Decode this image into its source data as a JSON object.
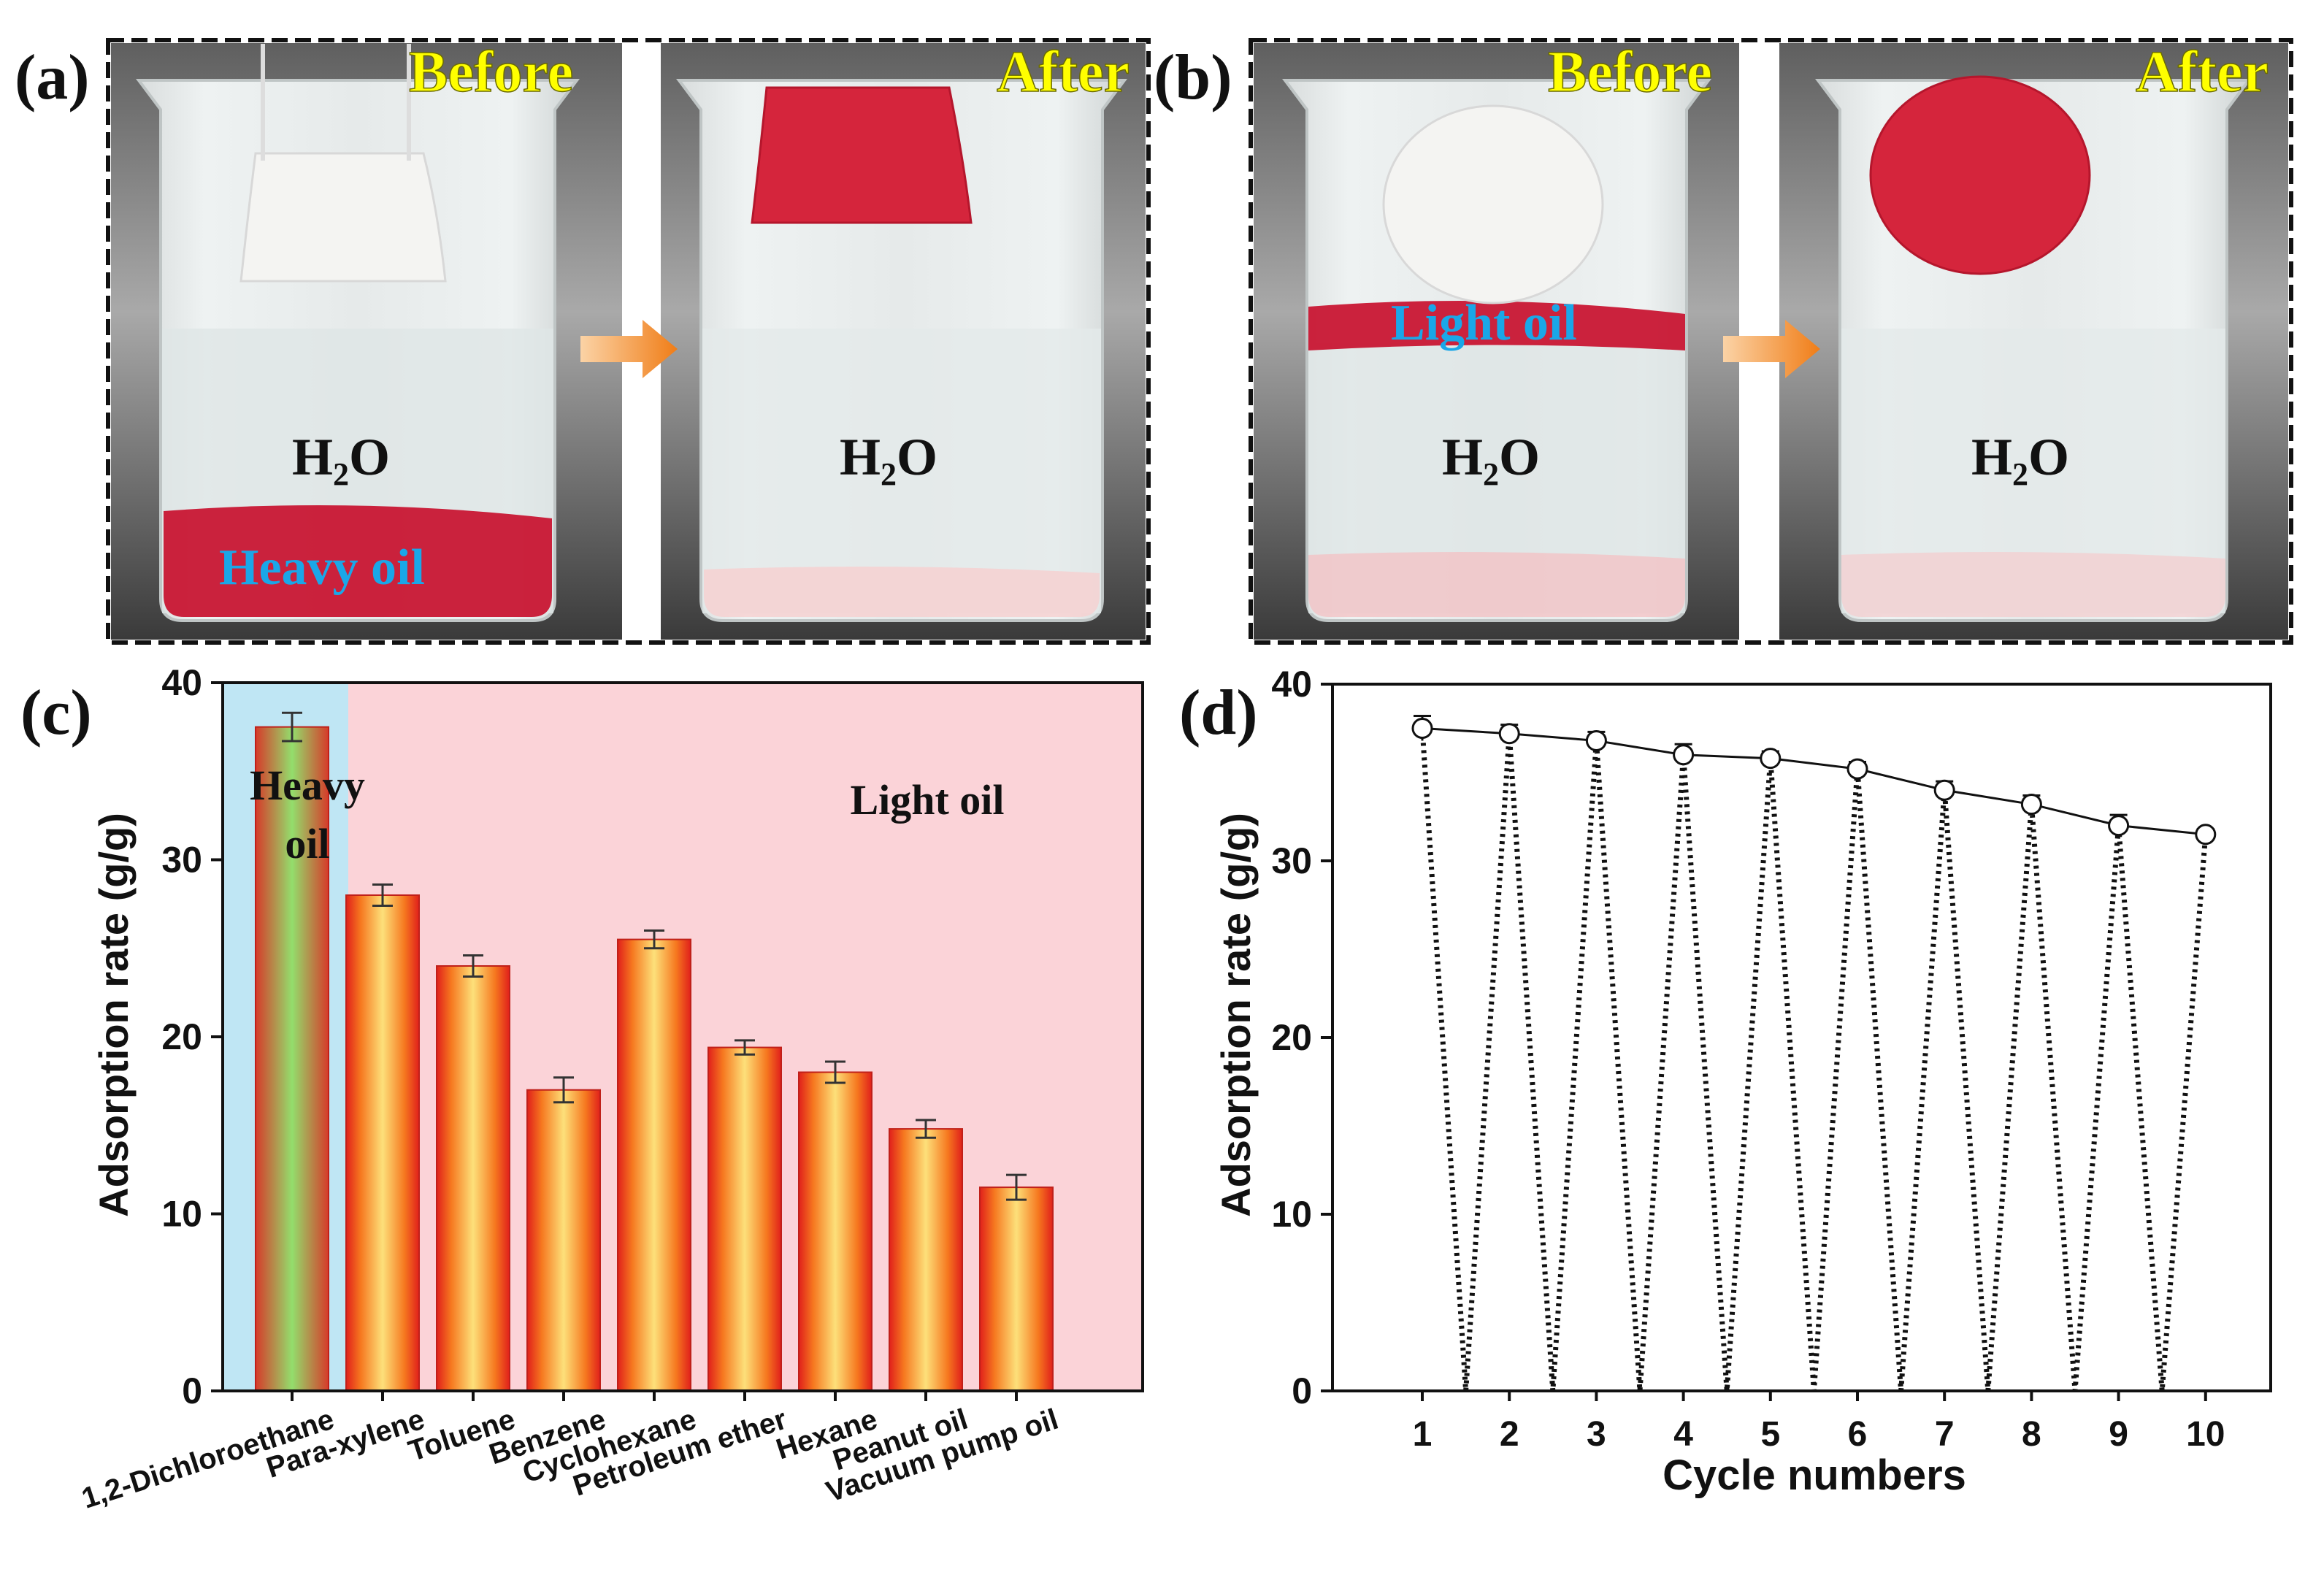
{
  "panels": {
    "a": {
      "label": "(a)",
      "before_label": "Before",
      "after_label": "After",
      "water_label_before": "H",
      "water_label_after": "H",
      "water_sub": "2",
      "water_o": "O",
      "oil_label": "Heavy oil"
    },
    "b": {
      "label": "(b)",
      "before_label": "Before",
      "after_label": "After",
      "water_label_before": "H",
      "water_label_after": "H",
      "water_sub": "2",
      "water_o": "O",
      "oil_label": "Light oil"
    },
    "c": {
      "label": "(c)"
    },
    "d": {
      "label": "(d)"
    }
  },
  "colors": {
    "label_yellow": "#ffff00",
    "label_blue": "#1aa7e8",
    "arrow_orange": "#f08a24",
    "oil_red": "#c8102e",
    "heavy_bg": "#bfe6f4",
    "light_bg": "#fbd3d8"
  },
  "chart_data": [
    {
      "type": "bar",
      "panel": "c",
      "ylabel": "Adsorption rate (g/g)",
      "ylim": [
        0,
        40
      ],
      "yticks": [
        0,
        10,
        20,
        30,
        40
      ],
      "categories": [
        "1,2-Dichloroethane",
        "Para-xylene",
        "Toluene",
        "Benzene",
        "Cyclohexane",
        "Petroleum ether",
        "Hexane",
        "Peanut oil",
        "Vacuum pump oil"
      ],
      "values": [
        37.5,
        28.0,
        24.0,
        17.0,
        25.5,
        19.4,
        18.0,
        14.8,
        11.5
      ],
      "errors": [
        0.8,
        0.6,
        0.6,
        0.7,
        0.5,
        0.4,
        0.6,
        0.5,
        0.7
      ],
      "annotations": [
        {
          "text_lines": [
            "Heavy",
            "oil"
          ],
          "region": "heavy"
        },
        {
          "text_lines": [
            "Light oil"
          ],
          "region": "light"
        }
      ]
    },
    {
      "type": "line",
      "panel": "d",
      "xlabel": "Cycle numbers",
      "ylabel": "Adsorption rate (g/g)",
      "ylim": [
        0,
        40
      ],
      "yticks": [
        0,
        10,
        20,
        30,
        40
      ],
      "x": [
        1,
        2,
        3,
        4,
        5,
        6,
        7,
        8,
        9,
        10
      ],
      "values": [
        37.5,
        37.2,
        36.8,
        36.0,
        35.8,
        35.2,
        34.0,
        33.2,
        32.0,
        31.5
      ],
      "errors": [
        0.7,
        0.5,
        0.5,
        0.6,
        0.4,
        0.4,
        0.5,
        0.5,
        0.6,
        0.3
      ],
      "zero_points_x": [
        1.5,
        2.5,
        3.5,
        4.5,
        5.5,
        6.5,
        7.5,
        8.5,
        9.5
      ]
    }
  ]
}
